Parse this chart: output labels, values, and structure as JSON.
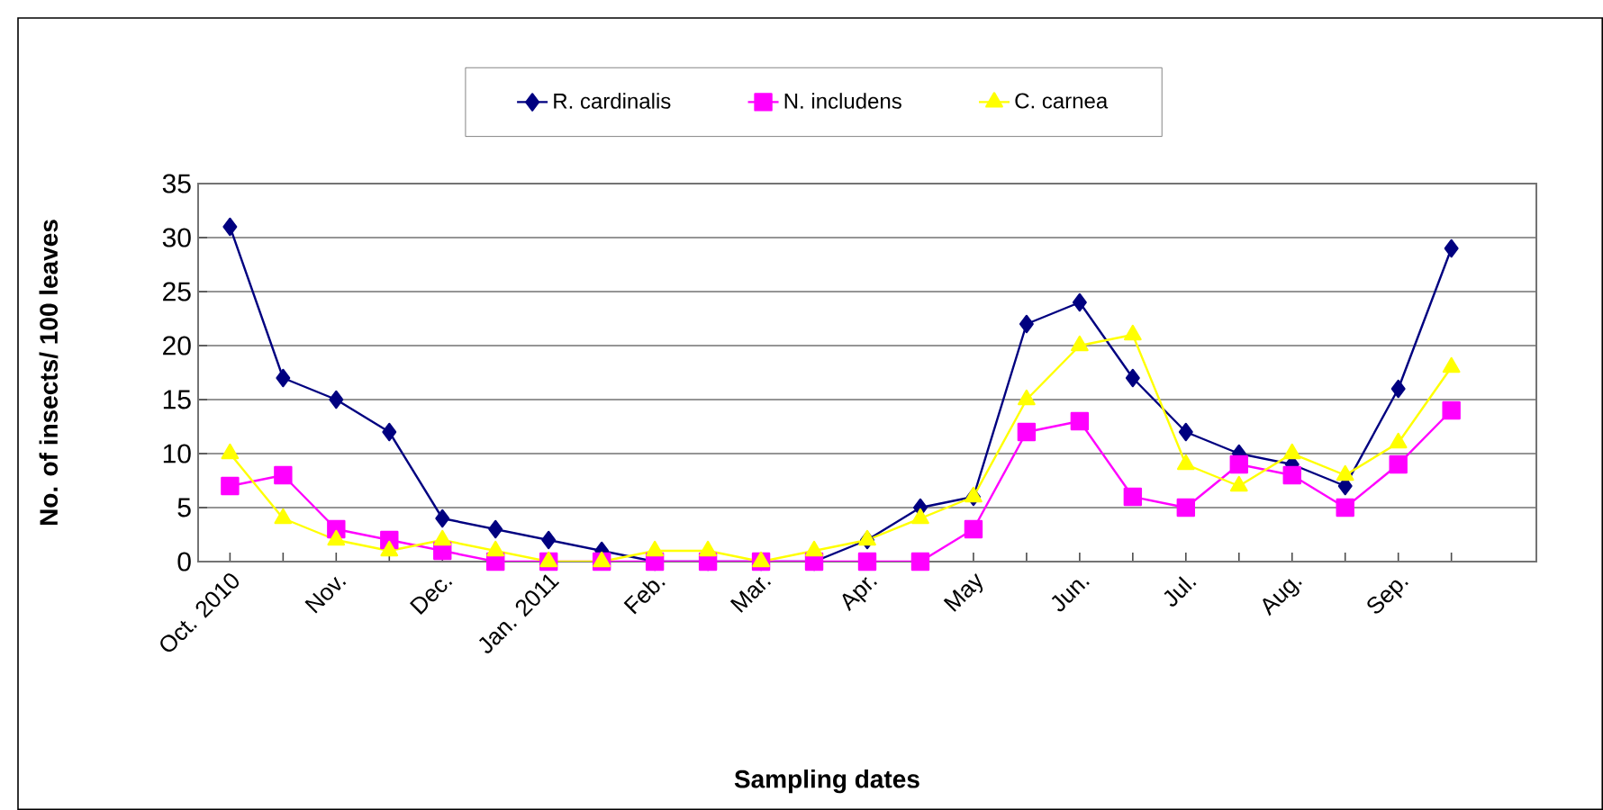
{
  "chart_data": {
    "type": "line",
    "xlabel": "Sampling dates",
    "ylabel": "No. of insects/ 100 leaves",
    "categories": [
      "Oct. 2010",
      null,
      "Nov.",
      null,
      "Dec.",
      null,
      "Jan. 2011",
      null,
      "Feb.",
      null,
      "Mar.",
      null,
      "Apr.",
      null,
      "May",
      null,
      "Jun.",
      null,
      "Jul.",
      null,
      "Aug.",
      null,
      "Sep.",
      null
    ],
    "series": [
      {
        "name": "R. cardinalis",
        "color": "#000080",
        "marker": "diamond",
        "values": [
          31,
          17,
          15,
          12,
          4,
          3,
          2,
          1,
          0,
          0,
          0,
          0,
          2,
          5,
          6,
          22,
          24,
          17,
          12,
          10,
          9,
          7,
          16,
          29
        ]
      },
      {
        "name": "N. includens",
        "color": "#ff00ff",
        "marker": "square",
        "values": [
          7,
          8,
          3,
          2,
          1,
          0,
          0,
          0,
          0,
          0,
          0,
          0,
          0,
          0,
          3,
          12,
          13,
          6,
          5,
          9,
          8,
          5,
          9,
          14
        ]
      },
      {
        "name": "C. carnea",
        "color": "#ffff00",
        "marker": "triangle",
        "values": [
          10,
          4,
          2,
          1,
          2,
          1,
          0,
          0,
          1,
          1,
          0,
          1,
          2,
          4,
          6,
          15,
          20,
          21,
          9,
          7,
          10,
          8,
          11,
          18
        ]
      }
    ],
    "ylim": [
      0,
      35
    ],
    "yticks": [
      0,
      5,
      10,
      15,
      20,
      25,
      30,
      35
    ],
    "grid": "y",
    "legend": "top",
    "line_style": "solid"
  }
}
